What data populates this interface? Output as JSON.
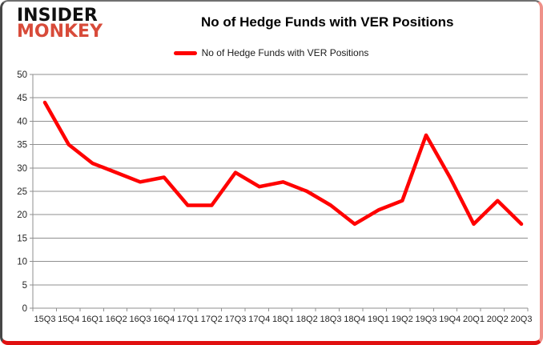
{
  "header": {
    "logo_line1": "INSIDER",
    "logo_line2": "MONKEY",
    "title": "No of Hedge Funds with VER Positions"
  },
  "legend": {
    "label": "No of Hedge Funds with VER Positions"
  },
  "colors": {
    "series_red": "#ff0000",
    "logo_red": "#d84b3a",
    "grid_gray": "#8f8f8f",
    "axis_text": "#262626"
  },
  "chart_data": {
    "type": "line",
    "title": "No of Hedge Funds with VER Positions",
    "categories": [
      "15Q3",
      "15Q4",
      "16Q1",
      "16Q2",
      "16Q3",
      "16Q4",
      "17Q1",
      "17Q2",
      "17Q3",
      "17Q4",
      "18Q1",
      "18Q2",
      "18Q3",
      "18Q4",
      "19Q1",
      "19Q2",
      "19Q3",
      "19Q4",
      "20Q1",
      "20Q2",
      "20Q3"
    ],
    "series": [
      {
        "name": "No of Hedge Funds with VER Positions",
        "color": "#ff0000",
        "values": [
          44,
          35,
          31,
          29,
          27,
          28,
          22,
          22,
          29,
          26,
          27,
          25,
          22,
          18,
          21,
          23,
          37,
          28,
          18,
          23,
          18
        ]
      }
    ],
    "xlabel": "",
    "ylabel": "",
    "ylim": [
      0,
      50
    ],
    "ytick_step": 5,
    "grid": true,
    "legend_position": "top"
  }
}
